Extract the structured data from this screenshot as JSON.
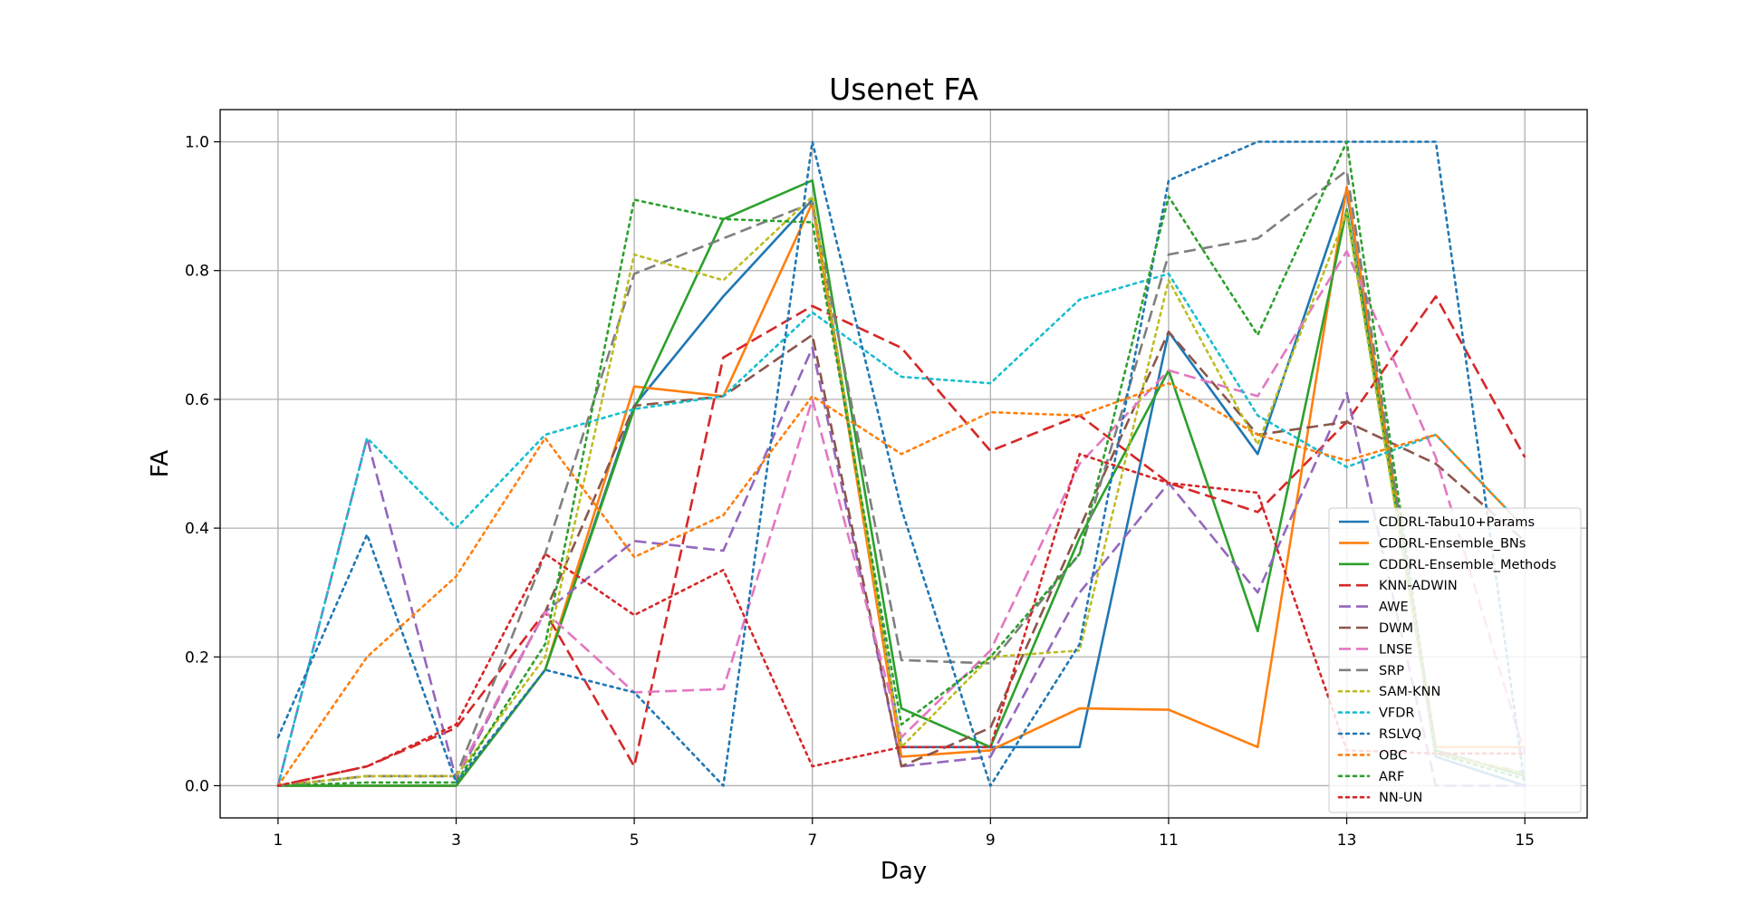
{
  "chart_data": {
    "type": "line",
    "title": "Usenet FA",
    "xlabel": "Day",
    "ylabel": "FA",
    "x": [
      1,
      2,
      3,
      4,
      5,
      6,
      7,
      8,
      9,
      10,
      11,
      12,
      13,
      14,
      15
    ],
    "xticks": [
      "1",
      "3",
      "5",
      "7",
      "9",
      "11",
      "13",
      "15"
    ],
    "yticks": [
      "0.0",
      "0.2",
      "0.4",
      "0.6",
      "0.8",
      "1.0"
    ],
    "xlim": [
      0.35,
      15.7
    ],
    "ylim": [
      -0.05,
      1.05
    ],
    "grid": true,
    "legend_position": "lower-right",
    "series": [
      {
        "name": "CDDRL-Tabu10+Params",
        "color": "#1f77b4",
        "dash": "solid",
        "values": [
          0,
          0,
          0,
          0.18,
          0.59,
          0.76,
          0.91,
          0.06,
          0.06,
          0.06,
          0.705,
          0.515,
          0.925,
          0.045,
          0
        ]
      },
      {
        "name": "CDDRL-Ensemble_BNs",
        "color": "#ff7f0e",
        "dash": "solid",
        "values": [
          0,
          0,
          0,
          0.18,
          0.62,
          0.605,
          0.905,
          0.045,
          0.055,
          0.12,
          0.118,
          0.06,
          0.93,
          0.06,
          0.06
        ]
      },
      {
        "name": "CDDRL-Ensemble_Methods",
        "color": "#2ca02c",
        "dash": "solid",
        "values": [
          0,
          0,
          0,
          0.18,
          0.585,
          0.88,
          0.94,
          0.12,
          0.06,
          0.385,
          0.645,
          0.24,
          0.895,
          0.055,
          0.015
        ]
      },
      {
        "name": "KNN-ADWIN",
        "color": "#d62728",
        "dash": "dashed",
        "values": [
          0,
          0.03,
          0.09,
          0.27,
          0.03,
          0.665,
          0.745,
          0.68,
          0.52,
          0.575,
          0.47,
          0.425,
          0.565,
          0.76,
          0.51
        ]
      },
      {
        "name": "AWE",
        "color": "#9467bd",
        "dash": "dashed",
        "values": [
          0,
          0.54,
          0.01,
          0.27,
          0.38,
          0.365,
          0.68,
          0.03,
          0.045,
          0.3,
          0.47,
          0.3,
          0.61,
          0,
          0
        ]
      },
      {
        "name": "DWM",
        "color": "#8c564b",
        "dash": "dashed",
        "values": [
          0,
          0.015,
          0.015,
          0.27,
          0.59,
          0.605,
          0.7,
          0.03,
          0.09,
          0.4,
          0.705,
          0.545,
          0.565,
          0.5,
          0.38
        ]
      },
      {
        "name": "LNSE",
        "color": "#e377c2",
        "dash": "dashed",
        "values": [
          0,
          0.015,
          0.015,
          0.27,
          0.145,
          0.15,
          0.6,
          0.075,
          0.21,
          0.5,
          0.645,
          0.605,
          0.83,
          0.51,
          0.05
        ]
      },
      {
        "name": "SRP",
        "color": "#7f7f7f",
        "dash": "dashed",
        "values": [
          0,
          0.015,
          0.015,
          0.36,
          0.795,
          0.85,
          0.905,
          0.195,
          0.19,
          0.36,
          0.825,
          0.85,
          0.955,
          0.05,
          0.02
        ]
      },
      {
        "name": "SAM-KNN",
        "color": "#bcbd22",
        "dash": "dotted",
        "values": [
          0,
          0.015,
          0.015,
          0.2,
          0.825,
          0.785,
          0.915,
          0.06,
          0.2,
          0.21,
          0.785,
          0.53,
          0.89,
          0.05,
          0.02
        ]
      },
      {
        "name": "VFDR",
        "color": "#17becf",
        "dash": "dotted",
        "values": [
          0,
          0.54,
          0.4,
          0.545,
          0.585,
          0.605,
          0.735,
          0.635,
          0.625,
          0.755,
          0.795,
          0.575,
          0.495,
          0.545,
          0.4
        ]
      },
      {
        "name": "RSLVQ",
        "color": "#1f77b4",
        "dash": "dotted",
        "values": [
          0.075,
          0.39,
          0.005,
          0.18,
          0.145,
          0,
          1.0,
          0.43,
          0,
          0.22,
          0.94,
          1.0,
          1.0,
          1.0,
          0
        ]
      },
      {
        "name": "OBC",
        "color": "#ff7f0e",
        "dash": "dotted",
        "values": [
          0,
          0.2,
          0.325,
          0.54,
          0.355,
          0.42,
          0.605,
          0.515,
          0.58,
          0.575,
          0.625,
          0.545,
          0.505,
          0.545,
          0.4
        ]
      },
      {
        "name": "ARF",
        "color": "#2ca02c",
        "dash": "dotted",
        "values": [
          0,
          0.005,
          0.005,
          0.22,
          0.91,
          0.88,
          0.875,
          0.095,
          0.2,
          0.36,
          0.915,
          0.7,
          1.0,
          0.05,
          0.01
        ]
      },
      {
        "name": "NN-UN",
        "color": "#d62728",
        "dash": "dotted",
        "values": [
          0,
          0.03,
          0.095,
          0.36,
          0.265,
          0.335,
          0.03,
          0.06,
          0.06,
          0.515,
          0.47,
          0.455,
          0.055,
          0.05,
          0.05
        ]
      }
    ]
  }
}
